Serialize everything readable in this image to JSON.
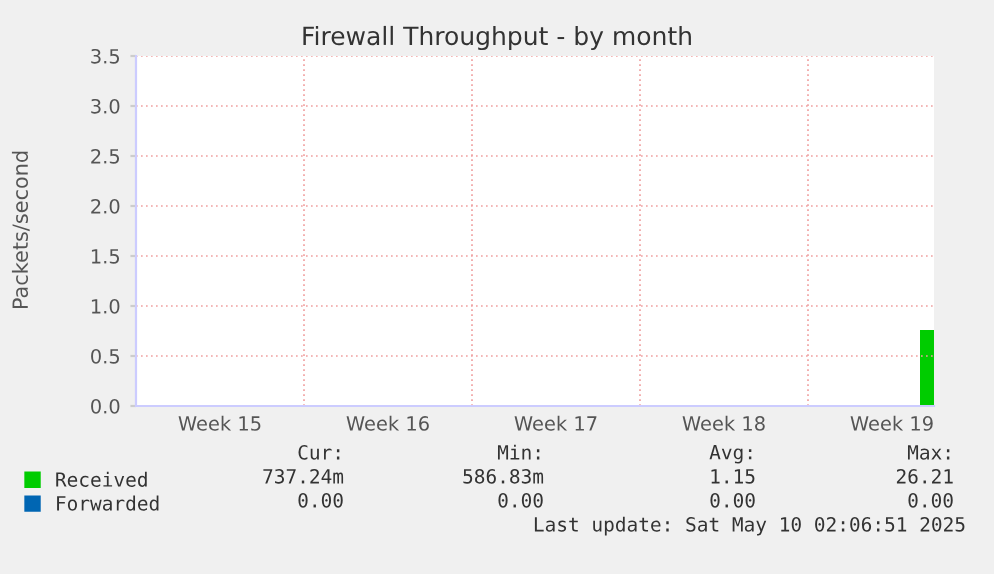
{
  "chart_data": {
    "type": "area",
    "title": "Firewall Throughput - by month",
    "ylabel": "Packets/second",
    "categories": [
      null,
      null,
      null,
      null,
      null,
      null,
      "Week 15",
      null,
      null,
      null,
      null,
      null,
      null,
      null,
      null,
      null,
      null,
      null,
      "Week 16",
      null,
      null,
      null,
      null,
      null,
      null,
      null,
      null,
      null,
      null,
      null,
      "Week 17",
      null,
      null,
      null,
      null,
      null,
      null,
      null,
      null,
      null,
      null,
      null,
      "Week 18",
      null,
      null,
      null,
      null,
      null,
      null,
      null,
      null,
      null,
      null,
      null,
      "Week 19",
      null,
      null,
      null
    ],
    "series": [
      {
        "name": "Received",
        "color": "#00cc00",
        "values": [
          null,
          null,
          null,
          null,
          null,
          null,
          null,
          null,
          null,
          null,
          null,
          null,
          null,
          null,
          null,
          null,
          null,
          null,
          null,
          null,
          null,
          null,
          null,
          null,
          null,
          null,
          null,
          null,
          null,
          null,
          null,
          null,
          null,
          null,
          null,
          null,
          null,
          null,
          null,
          null,
          null,
          null,
          null,
          null,
          null,
          null,
          null,
          null,
          null,
          null,
          null,
          null,
          null,
          null,
          null,
          null,
          0.76,
          0.76
        ]
      },
      {
        "name": "Forwarded",
        "color": "#0066b3",
        "type": "line",
        "values": [
          null,
          null,
          null,
          null,
          null,
          null,
          null,
          null,
          null,
          null,
          null,
          null,
          null,
          null,
          null,
          null,
          null,
          null,
          null,
          null,
          null,
          null,
          null,
          null,
          null,
          null,
          null,
          null,
          null,
          null,
          null,
          null,
          null,
          null,
          null,
          null,
          null,
          null,
          null,
          null,
          null,
          null,
          null,
          null,
          null,
          null,
          null,
          null,
          null,
          null,
          null,
          null,
          null,
          null,
          null,
          null,
          null,
          null
        ]
      }
    ],
    "ylim": [
      0,
      3.5
    ],
    "yticks": [
      {
        "value": 0,
        "label": "0.0"
      },
      {
        "value": 0.5,
        "label": "0.5"
      },
      {
        "value": 1,
        "label": "1.0"
      },
      {
        "value": 1.5,
        "label": "1.5"
      },
      {
        "value": 2,
        "label": "2.0"
      },
      {
        "value": 2.5,
        "label": "2.5"
      },
      {
        "value": 3,
        "label": "3.0"
      },
      {
        "value": 3.5,
        "label": "3.5"
      }
    ],
    "grid": true,
    "legend": "bottom",
    "annotations": [
      "Cur:",
      "Min:",
      "Avg:",
      "Max:",
      "737.24m",
      "586.83m",
      "1.15",
      "26.21",
      "0.00",
      "0.00",
      "0.00",
      "0.00",
      "Last update: Sat May 10 02:06:51 2025"
    ]
  }
}
